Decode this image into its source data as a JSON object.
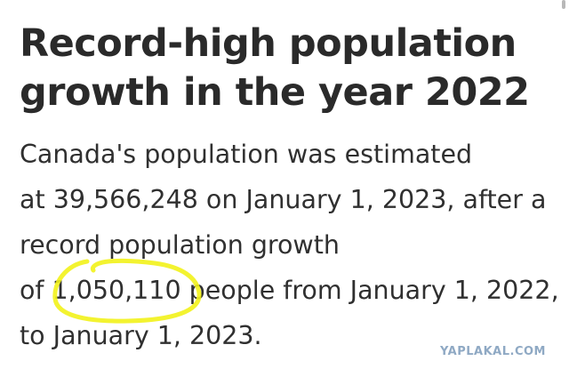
{
  "article": {
    "headline": "Record-high population growth in the year 2022",
    "body_lines": [
      "Canada's population was estimated",
      "at 39,566,248 on January 1, 2023, after a",
      "record population growth",
      "of 1,050,110 people from January 1, 2022,",
      "to January 1, 2023."
    ]
  },
  "annotation": {
    "highlight_color": "#f2f21a"
  },
  "watermark": {
    "text": "YAPLAKAL.COM"
  }
}
